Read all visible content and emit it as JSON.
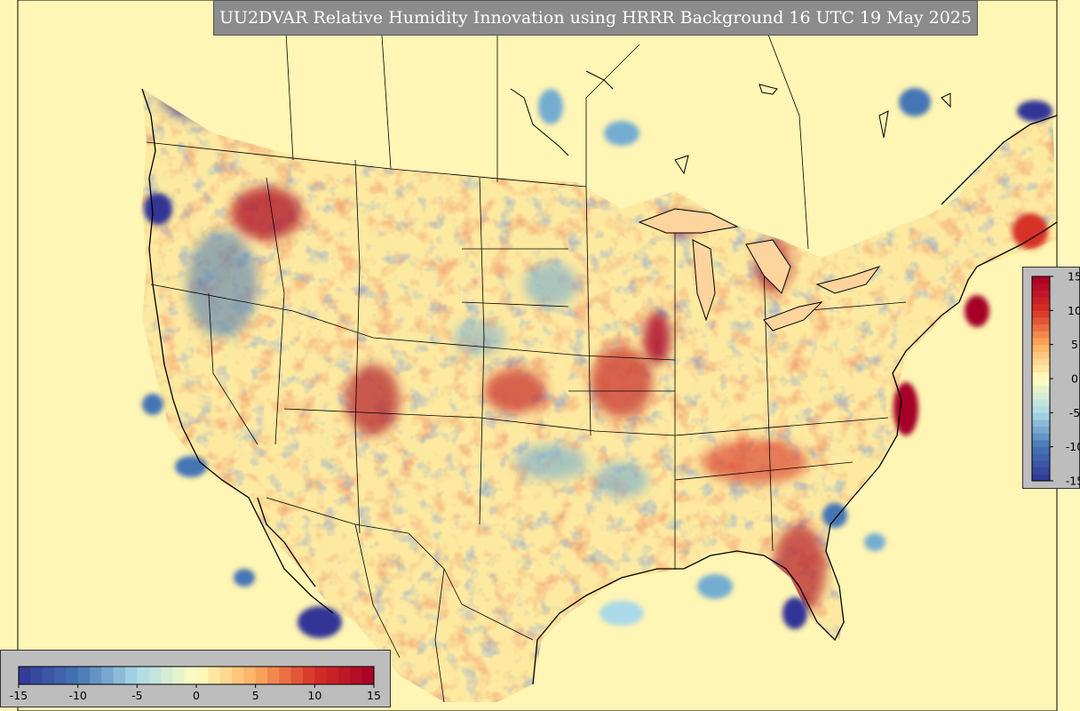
{
  "title": "UU2DVAR Relative Humidity Innovation using HRRR Background 16 UTC 19 May 2025",
  "colorbar": {
    "min": -15,
    "max": 15,
    "ticks": [
      "-15",
      "-10",
      "-5",
      "0",
      "5",
      "10",
      "15"
    ],
    "colors": {
      "neg_dark": "#313695",
      "neg_mid": "#4575b4",
      "neg_light": "#abd9e9",
      "neutral": "#ffffbf",
      "pos_light": "#fdae61",
      "pos_mid": "#d73027",
      "pos_dark": "#a50026"
    }
  },
  "map_colors": {
    "background": "#fff7bc",
    "outline": "#000000"
  }
}
